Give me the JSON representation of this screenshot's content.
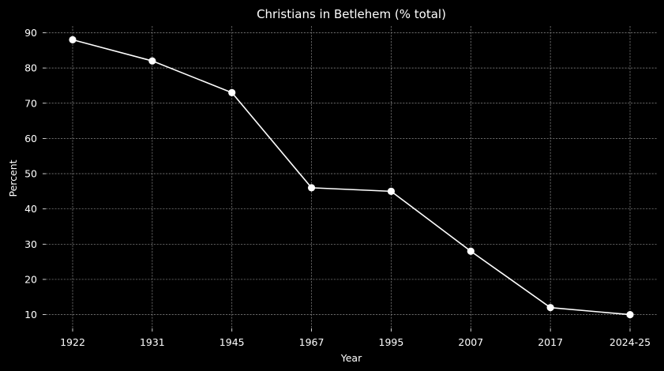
{
  "chart_data": {
    "type": "line",
    "title": "Christians in Betlehem (% total)",
    "xlabel": "Year",
    "ylabel": "Percent",
    "categories": [
      "1922",
      "1931",
      "1945",
      "1967",
      "1995",
      "2007",
      "2017",
      "2024-25"
    ],
    "series": [
      {
        "values": [
          88,
          82,
          73,
          46,
          45,
          28,
          12,
          10
        ]
      }
    ],
    "yticks": [
      10,
      20,
      30,
      40,
      50,
      60,
      70,
      80,
      90
    ],
    "ylim": [
      6.1,
      91.9
    ],
    "grid": true,
    "legend": "none",
    "colors": {
      "background": "#000000",
      "line": "#ffffff",
      "text": "#ffffff",
      "grid": "#8a8a8a"
    }
  }
}
